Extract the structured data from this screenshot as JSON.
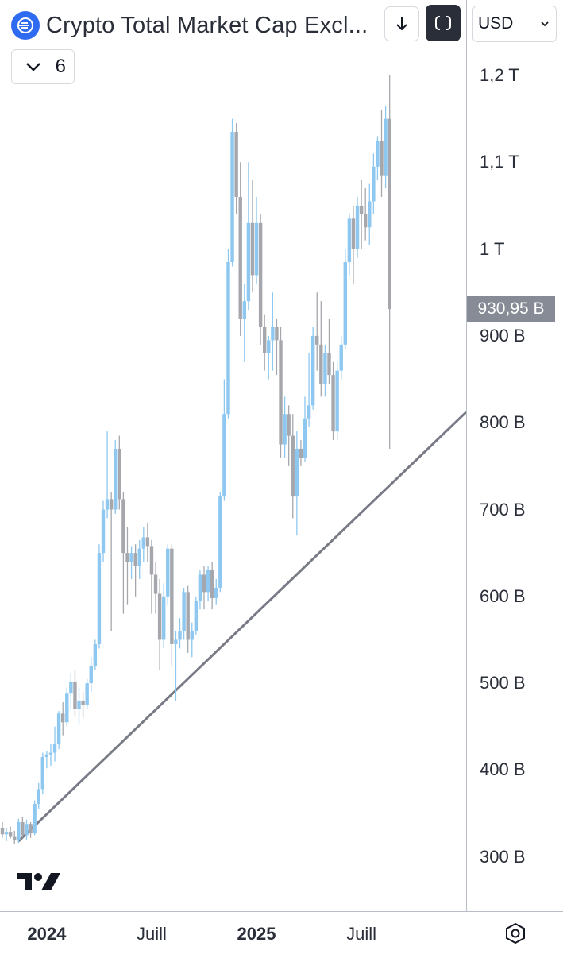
{
  "header": {
    "title": "Crypto Total Market Cap Excl...",
    "collapse_count": "6",
    "currency": "USD"
  },
  "colors": {
    "up": "#8ec7ef",
    "down": "#a6a7ad",
    "trendline": "#787b86",
    "last_price_bg": "#868b95",
    "logo": "#2f6bf0"
  },
  "icons": {
    "logo": "crypto-cap-icon",
    "download": "download-icon",
    "fullscreen": "fullscreen-icon",
    "chevron": "chevron-down-icon",
    "settings": "settings-icon",
    "brand": "tradingview-logo"
  },
  "chart_data": {
    "type": "candlestick",
    "title": "Crypto Total Market Cap Excl...",
    "currency": "USD",
    "interval": "weekly",
    "y_scale": "linear",
    "ylim": [
      230,
      1230
    ],
    "price_axis_labels": [
      "1,2 T",
      "1,1 T",
      "1 T",
      "900 B",
      "800 B",
      "700 B",
      "600 B",
      "500 B",
      "400 B",
      "300 B"
    ],
    "price_axis_values": [
      1200,
      1100,
      1000,
      900,
      800,
      700,
      600,
      500,
      400,
      300
    ],
    "time_axis_labels": [
      {
        "label": "2024",
        "bold": true,
        "index": 11
      },
      {
        "label": "Juill",
        "bold": false,
        "index": 37
      },
      {
        "label": "2025",
        "bold": true,
        "index": 63
      },
      {
        "label": "Juill",
        "bold": false,
        "index": 89
      }
    ],
    "last_price": {
      "label": "930,95 B",
      "value": 930.95
    },
    "trendline": {
      "from": {
        "index": 4,
        "value": 318
      },
      "to": {
        "index": 114,
        "value": 808
      }
    },
    "candles": [
      {
        "o": 333,
        "h": 340,
        "l": 322,
        "c": 326
      },
      {
        "o": 326,
        "h": 333,
        "l": 318,
        "c": 328
      },
      {
        "o": 328,
        "h": 335,
        "l": 321,
        "c": 323
      },
      {
        "o": 323,
        "h": 330,
        "l": 315,
        "c": 319
      },
      {
        "o": 319,
        "h": 344,
        "l": 316,
        "c": 340
      },
      {
        "o": 340,
        "h": 346,
        "l": 322,
        "c": 325
      },
      {
        "o": 325,
        "h": 343,
        "l": 320,
        "c": 338
      },
      {
        "o": 338,
        "h": 340,
        "l": 322,
        "c": 327
      },
      {
        "o": 327,
        "h": 365,
        "l": 325,
        "c": 361
      },
      {
        "o": 361,
        "h": 385,
        "l": 355,
        "c": 378
      },
      {
        "o": 378,
        "h": 420,
        "l": 372,
        "c": 415
      },
      {
        "o": 415,
        "h": 422,
        "l": 402,
        "c": 418
      },
      {
        "o": 418,
        "h": 430,
        "l": 405,
        "c": 420
      },
      {
        "o": 420,
        "h": 450,
        "l": 410,
        "c": 430
      },
      {
        "o": 430,
        "h": 468,
        "l": 424,
        "c": 465
      },
      {
        "o": 465,
        "h": 478,
        "l": 440,
        "c": 455
      },
      {
        "o": 455,
        "h": 495,
        "l": 450,
        "c": 488
      },
      {
        "o": 488,
        "h": 512,
        "l": 470,
        "c": 502
      },
      {
        "o": 502,
        "h": 515,
        "l": 462,
        "c": 470
      },
      {
        "o": 470,
        "h": 495,
        "l": 452,
        "c": 480
      },
      {
        "o": 480,
        "h": 490,
        "l": 460,
        "c": 475
      },
      {
        "o": 475,
        "h": 505,
        "l": 470,
        "c": 500
      },
      {
        "o": 500,
        "h": 530,
        "l": 490,
        "c": 520
      },
      {
        "o": 520,
        "h": 550,
        "l": 515,
        "c": 545
      },
      {
        "o": 545,
        "h": 660,
        "l": 540,
        "c": 650
      },
      {
        "o": 650,
        "h": 710,
        "l": 640,
        "c": 700
      },
      {
        "o": 700,
        "h": 790,
        "l": 690,
        "c": 712
      },
      {
        "o": 712,
        "h": 720,
        "l": 560,
        "c": 700
      },
      {
        "o": 700,
        "h": 780,
        "l": 695,
        "c": 770
      },
      {
        "o": 770,
        "h": 785,
        "l": 700,
        "c": 712
      },
      {
        "o": 712,
        "h": 720,
        "l": 580,
        "c": 650
      },
      {
        "o": 650,
        "h": 680,
        "l": 590,
        "c": 640
      },
      {
        "o": 640,
        "h": 658,
        "l": 620,
        "c": 650
      },
      {
        "o": 650,
        "h": 660,
        "l": 600,
        "c": 635
      },
      {
        "o": 635,
        "h": 665,
        "l": 620,
        "c": 655
      },
      {
        "o": 655,
        "h": 680,
        "l": 640,
        "c": 668
      },
      {
        "o": 668,
        "h": 685,
        "l": 640,
        "c": 658
      },
      {
        "o": 658,
        "h": 665,
        "l": 580,
        "c": 625
      },
      {
        "o": 625,
        "h": 640,
        "l": 580,
        "c": 603
      },
      {
        "o": 603,
        "h": 620,
        "l": 515,
        "c": 550
      },
      {
        "o": 550,
        "h": 615,
        "l": 540,
        "c": 600
      },
      {
        "o": 600,
        "h": 660,
        "l": 590,
        "c": 655
      },
      {
        "o": 655,
        "h": 660,
        "l": 520,
        "c": 545
      },
      {
        "o": 545,
        "h": 560,
        "l": 480,
        "c": 550
      },
      {
        "o": 550,
        "h": 575,
        "l": 540,
        "c": 560
      },
      {
        "o": 560,
        "h": 610,
        "l": 550,
        "c": 605
      },
      {
        "o": 605,
        "h": 612,
        "l": 535,
        "c": 550
      },
      {
        "o": 550,
        "h": 570,
        "l": 530,
        "c": 560
      },
      {
        "o": 560,
        "h": 600,
        "l": 555,
        "c": 595
      },
      {
        "o": 595,
        "h": 630,
        "l": 585,
        "c": 625
      },
      {
        "o": 625,
        "h": 635,
        "l": 585,
        "c": 605
      },
      {
        "o": 605,
        "h": 635,
        "l": 595,
        "c": 630
      },
      {
        "o": 630,
        "h": 640,
        "l": 585,
        "c": 598
      },
      {
        "o": 598,
        "h": 620,
        "l": 590,
        "c": 610
      },
      {
        "o": 610,
        "h": 720,
        "l": 605,
        "c": 715
      },
      {
        "o": 715,
        "h": 850,
        "l": 710,
        "c": 810
      },
      {
        "o": 810,
        "h": 1000,
        "l": 805,
        "c": 985
      },
      {
        "o": 985,
        "h": 1150,
        "l": 980,
        "c": 1135
      },
      {
        "o": 1135,
        "h": 1145,
        "l": 1040,
        "c": 1060
      },
      {
        "o": 1060,
        "h": 1100,
        "l": 900,
        "c": 920
      },
      {
        "o": 920,
        "h": 960,
        "l": 870,
        "c": 940
      },
      {
        "o": 940,
        "h": 1100,
        "l": 930,
        "c": 1030
      },
      {
        "o": 1030,
        "h": 1080,
        "l": 950,
        "c": 970
      },
      {
        "o": 970,
        "h": 1060,
        "l": 960,
        "c": 1030
      },
      {
        "o": 1030,
        "h": 1040,
        "l": 890,
        "c": 910
      },
      {
        "o": 910,
        "h": 925,
        "l": 860,
        "c": 880
      },
      {
        "o": 880,
        "h": 900,
        "l": 850,
        "c": 895
      },
      {
        "o": 895,
        "h": 950,
        "l": 860,
        "c": 910
      },
      {
        "o": 910,
        "h": 920,
        "l": 855,
        "c": 895
      },
      {
        "o": 895,
        "h": 910,
        "l": 760,
        "c": 775
      },
      {
        "o": 775,
        "h": 830,
        "l": 760,
        "c": 810
      },
      {
        "o": 810,
        "h": 820,
        "l": 750,
        "c": 785
      },
      {
        "o": 785,
        "h": 810,
        "l": 690,
        "c": 715
      },
      {
        "o": 715,
        "h": 790,
        "l": 670,
        "c": 770
      },
      {
        "o": 770,
        "h": 780,
        "l": 750,
        "c": 760
      },
      {
        "o": 760,
        "h": 830,
        "l": 755,
        "c": 805
      },
      {
        "o": 805,
        "h": 880,
        "l": 795,
        "c": 820
      },
      {
        "o": 820,
        "h": 910,
        "l": 815,
        "c": 900
      },
      {
        "o": 900,
        "h": 950,
        "l": 860,
        "c": 890
      },
      {
        "o": 890,
        "h": 940,
        "l": 830,
        "c": 845
      },
      {
        "o": 845,
        "h": 890,
        "l": 830,
        "c": 880
      },
      {
        "o": 880,
        "h": 920,
        "l": 845,
        "c": 855
      },
      {
        "o": 855,
        "h": 870,
        "l": 780,
        "c": 790
      },
      {
        "o": 790,
        "h": 870,
        "l": 780,
        "c": 860
      },
      {
        "o": 860,
        "h": 900,
        "l": 850,
        "c": 890
      },
      {
        "o": 890,
        "h": 1000,
        "l": 885,
        "c": 985
      },
      {
        "o": 985,
        "h": 1040,
        "l": 970,
        "c": 1035
      },
      {
        "o": 1035,
        "h": 1050,
        "l": 960,
        "c": 1000
      },
      {
        "o": 1000,
        "h": 1060,
        "l": 990,
        "c": 1050
      },
      {
        "o": 1050,
        "h": 1080,
        "l": 1000,
        "c": 1040
      },
      {
        "o": 1040,
        "h": 1070,
        "l": 1010,
        "c": 1025
      },
      {
        "o": 1025,
        "h": 1075,
        "l": 1005,
        "c": 1055
      },
      {
        "o": 1055,
        "h": 1110,
        "l": 1040,
        "c": 1095
      },
      {
        "o": 1095,
        "h": 1130,
        "l": 1080,
        "c": 1125
      },
      {
        "o": 1125,
        "h": 1160,
        "l": 1060,
        "c": 1085
      },
      {
        "o": 1085,
        "h": 1165,
        "l": 1070,
        "c": 1150
      },
      {
        "o": 1150,
        "h": 1200,
        "l": 770,
        "c": 930.95
      }
    ]
  }
}
